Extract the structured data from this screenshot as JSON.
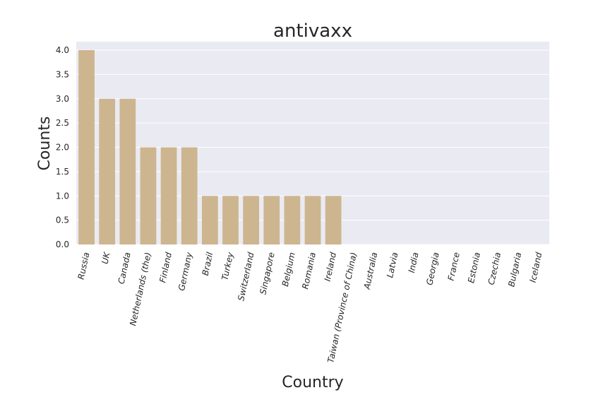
{
  "chart_data": {
    "type": "bar",
    "title": "antivaxx",
    "xlabel": "Country",
    "ylabel": "Counts",
    "categories": [
      "Russia",
      "UK",
      "Canada",
      "Netherlands (the)",
      "Finland",
      "Germany",
      "Brazil",
      "Turkey",
      "Switzerland",
      "Singapore",
      "Belgium",
      "Romania",
      "Ireland",
      "Taiwan (Province of China)",
      "Australia",
      "Latvia",
      "India",
      "Georgia",
      "France",
      "Estonia",
      "Czechia",
      "Bulgaria",
      "Iceland"
    ],
    "values": [
      4,
      3,
      3,
      2,
      2,
      2,
      1,
      1,
      1,
      1,
      1,
      1,
      1,
      0,
      0,
      0,
      0,
      0,
      0,
      0,
      0,
      0,
      0
    ],
    "ylim": [
      0,
      4.0
    ],
    "yticks": [
      "0.0",
      "0.5",
      "1.0",
      "1.5",
      "2.0",
      "2.5",
      "3.0",
      "3.5",
      "4.0"
    ],
    "grid": true,
    "bar_color": "#cdb58f",
    "background_color": "#eaeaf2"
  }
}
